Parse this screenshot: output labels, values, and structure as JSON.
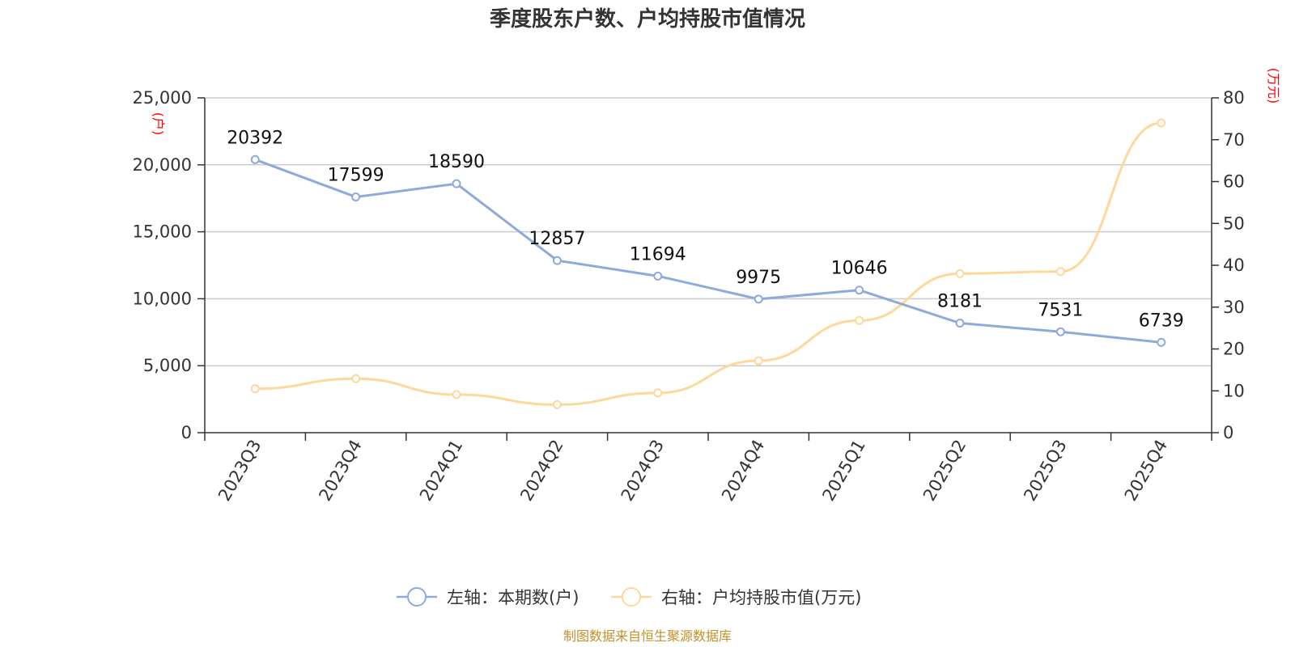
{
  "chart_data": {
    "type": "line",
    "title": "季度股东户数、户均持股市值情况",
    "categories": [
      "2023Q3",
      "2023Q4",
      "2024Q1",
      "2024Q2",
      "2024Q3",
      "2024Q4",
      "2025Q1",
      "2025Q2",
      "2025Q3",
      "2025Q4"
    ],
    "left_axis": {
      "unit": "(户)",
      "ylim": [
        0,
        25000
      ],
      "ticks": [
        "0",
        "5,000",
        "10,000",
        "15,000",
        "20,000",
        "25,000"
      ],
      "tick_values": [
        0,
        5000,
        10000,
        15000,
        20000,
        25000
      ]
    },
    "right_axis": {
      "unit": "(万元)",
      "ylim": [
        0,
        80
      ],
      "ticks": [
        "0",
        "10",
        "20",
        "30",
        "40",
        "50",
        "60",
        "70",
        "80"
      ],
      "tick_values": [
        0,
        10,
        20,
        30,
        40,
        50,
        60,
        70,
        80
      ]
    },
    "grid": true,
    "legend_position": "bottom",
    "series": [
      {
        "name": "左轴：本期数(户)",
        "axis": "left",
        "color": "#8eaadb",
        "values": [
          20392,
          17599,
          18590,
          12857,
          11694,
          9975,
          10646,
          8181,
          7531,
          6739
        ],
        "labels": [
          "20392",
          "17599",
          "18590",
          "12857",
          "11694",
          "9975",
          "10646",
          "8181",
          "7531",
          "6739"
        ]
      },
      {
        "name": "右轴：户均持股市值(万元)",
        "axis": "right",
        "color": "#fdd89a",
        "values": [
          10.5,
          12.9,
          9.1,
          6.7,
          9.5,
          17.2,
          26.8,
          38.0,
          38.5,
          74.0
        ]
      }
    ],
    "source": "制图数据来自恒生聚源数据库"
  }
}
